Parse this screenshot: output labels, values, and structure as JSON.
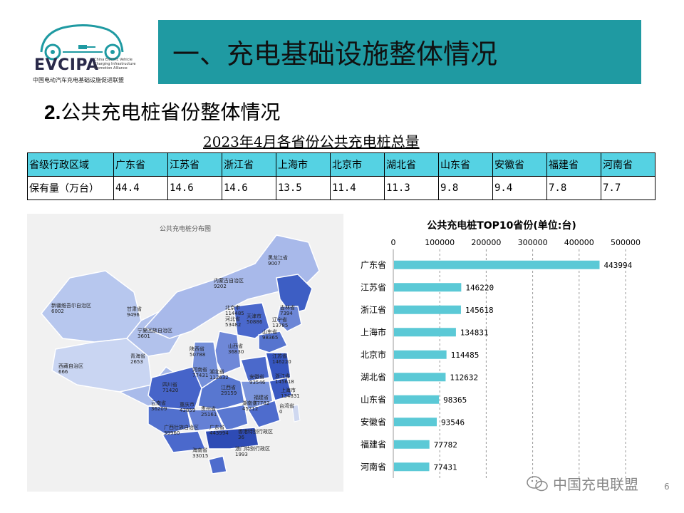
{
  "logo": {
    "brand": "EVCIPA",
    "english": "China Electric Vehicle Charging Infrastructure Promotion Alliance",
    "chinese": "中国电动汽车充电基础设施促进联盟",
    "icon": "ev-charging-car-icon"
  },
  "header": {
    "title": "一、充电基础设施整体情况"
  },
  "subtitle": {
    "number": "2.",
    "text": "公共充电桩省份整体情况"
  },
  "table": {
    "title": "2023年4月各省份公共充电桩总量",
    "row_labels": [
      "省级行政区域",
      "保有量（万台）"
    ],
    "provinces": [
      "广东省",
      "江苏省",
      "浙江省",
      "上海市",
      "北京市",
      "湖北省",
      "山东省",
      "安徽省",
      "福建省",
      "河南省"
    ],
    "values": [
      "44.4",
      "14.6",
      "14.6",
      "13.5",
      "11.4",
      "11.3",
      "9.8",
      "9.4",
      "7.8",
      "7.7"
    ]
  },
  "map": {
    "title": "公共充电桩分布图",
    "labels": [
      {
        "name": "黑龙江省",
        "value": "9007"
      },
      {
        "name": "吉林省",
        "value": "7394"
      },
      {
        "name": "辽宁省",
        "value": "13785"
      },
      {
        "name": "内蒙古自治区",
        "value": "9202"
      },
      {
        "name": "新疆维吾尔自治区",
        "value": "6002"
      },
      {
        "name": "甘肃省",
        "value": "9496"
      },
      {
        "name": "北京市",
        "value": "114485"
      },
      {
        "name": "天津市",
        "value": "50886"
      },
      {
        "name": "河北省",
        "value": "53482"
      },
      {
        "name": "山东省",
        "value": "98365"
      },
      {
        "name": "宁夏回族自治区",
        "value": "3601"
      },
      {
        "name": "山西省",
        "value": "36830"
      },
      {
        "name": "青海省",
        "value": "2653"
      },
      {
        "name": "陕西省",
        "value": "50788"
      },
      {
        "name": "河南省",
        "value": "77431"
      },
      {
        "name": "江苏省",
        "value": "146220"
      },
      {
        "name": "安徽省",
        "value": "93546"
      },
      {
        "name": "西藏自治区",
        "value": "666"
      },
      {
        "name": "湖北省",
        "value": "112632"
      },
      {
        "name": "浙江省",
        "value": "145618"
      },
      {
        "name": "上海市",
        "value": "134831"
      },
      {
        "name": "四川省",
        "value": "71420"
      },
      {
        "name": "重庆市",
        "value": "43859"
      },
      {
        "name": "江西省",
        "value": "29159"
      },
      {
        "name": "福建省",
        "value": "77782"
      },
      {
        "name": "云南省",
        "value": "36209"
      },
      {
        "name": "贵州省",
        "value": "25161"
      },
      {
        "name": "湖南省",
        "value": "45212"
      },
      {
        "name": "台湾省",
        "value": "0"
      },
      {
        "name": "广西壮族自治区",
        "value": "39960"
      },
      {
        "name": "广东省",
        "value": "443994"
      },
      {
        "name": "香港特别行政区",
        "value": "36"
      },
      {
        "name": "澳门特别行政区",
        "value": "1993"
      },
      {
        "name": "海南省",
        "value": "33015"
      }
    ]
  },
  "chart_data": {
    "type": "bar",
    "orientation": "horizontal",
    "title": "公共充电桩TOP10省份(单位:台)",
    "categories": [
      "广东省",
      "江苏省",
      "浙江省",
      "上海市",
      "北京市",
      "湖北省",
      "山东省",
      "安徽省",
      "福建省",
      "河南省"
    ],
    "values": [
      443994,
      146220,
      145618,
      134831,
      114485,
      112632,
      98365,
      93546,
      77782,
      77431
    ],
    "xlim": [
      0,
      500000
    ],
    "xticks": [
      "0",
      "100000",
      "200000",
      "300000",
      "400000",
      "500000"
    ],
    "xaxis_position": "top",
    "grid": "vertical-dashed",
    "bar_color": "#5bc9d6"
  },
  "footer": {
    "watermark": "中国充电联盟",
    "page": "6"
  },
  "colors": {
    "header_bar": "#1f9aa2",
    "table_header": "#55d2e3",
    "bar": "#5bc9d6",
    "map_dark": "#2e4bb5",
    "map_light": "#b9c8ec"
  }
}
